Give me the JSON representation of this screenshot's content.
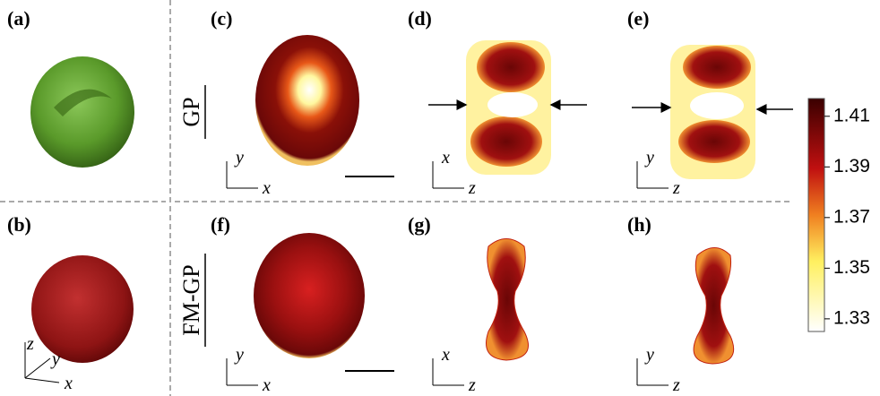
{
  "panels": [
    {
      "label": "(a)"
    },
    {
      "label": "(b)",
      "axes": [
        "z",
        "y",
        "x"
      ]
    },
    {
      "label": "(c)",
      "axes": [
        "y",
        "x"
      ]
    },
    {
      "label": "(d)",
      "axes": [
        "x",
        "z"
      ]
    },
    {
      "label": "(e)",
      "axes": [
        "y",
        "z"
      ]
    },
    {
      "label": "(f)",
      "axes": [
        "y",
        "x"
      ]
    },
    {
      "label": "(g)",
      "axes": [
        "x",
        "z"
      ]
    },
    {
      "label": "(h)",
      "axes": [
        "y",
        "z"
      ]
    }
  ],
  "rows": [
    "GP",
    "FM-GP"
  ],
  "colorbar": {
    "lim": [
      1.325,
      1.417
    ],
    "ticks": [
      1.33,
      1.35,
      1.37,
      1.39,
      1.41
    ]
  }
}
